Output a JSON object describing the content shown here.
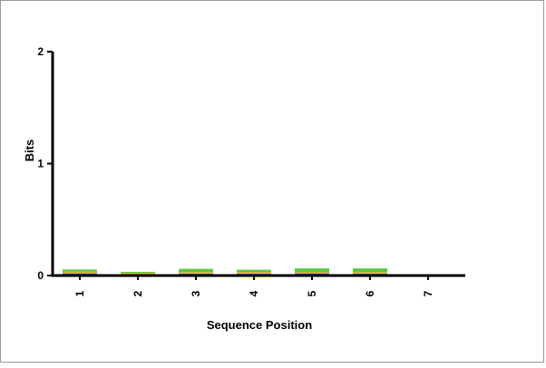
{
  "chart_data": {
    "type": "sequence-logo",
    "ylabel": "Bits",
    "xlabel": "Sequence Position",
    "ylim": [
      0,
      2
    ],
    "yticks": [
      "0",
      "1",
      "2"
    ],
    "positions": [
      "1",
      "2",
      "3",
      "4",
      "5",
      "6",
      "7"
    ],
    "series": [
      {
        "name": "green",
        "color": "#3fbf1f",
        "values": [
          0.02,
          0.012,
          0.03,
          0.022,
          0.032,
          0.034,
          0.004
        ]
      },
      {
        "name": "orange",
        "color": "#f0a000",
        "values": [
          0.014,
          0.01,
          0.012,
          0.014,
          0.012,
          0.012,
          0.002
        ]
      },
      {
        "name": "blue",
        "color": "#2a6fd6",
        "values": [
          0.01,
          0.006,
          0.01,
          0.008,
          0.01,
          0.01,
          0.002
        ]
      },
      {
        "name": "red",
        "color": "#e02020",
        "values": [
          0.01,
          0.005,
          0.008,
          0.008,
          0.01,
          0.008,
          0.002
        ]
      }
    ]
  }
}
